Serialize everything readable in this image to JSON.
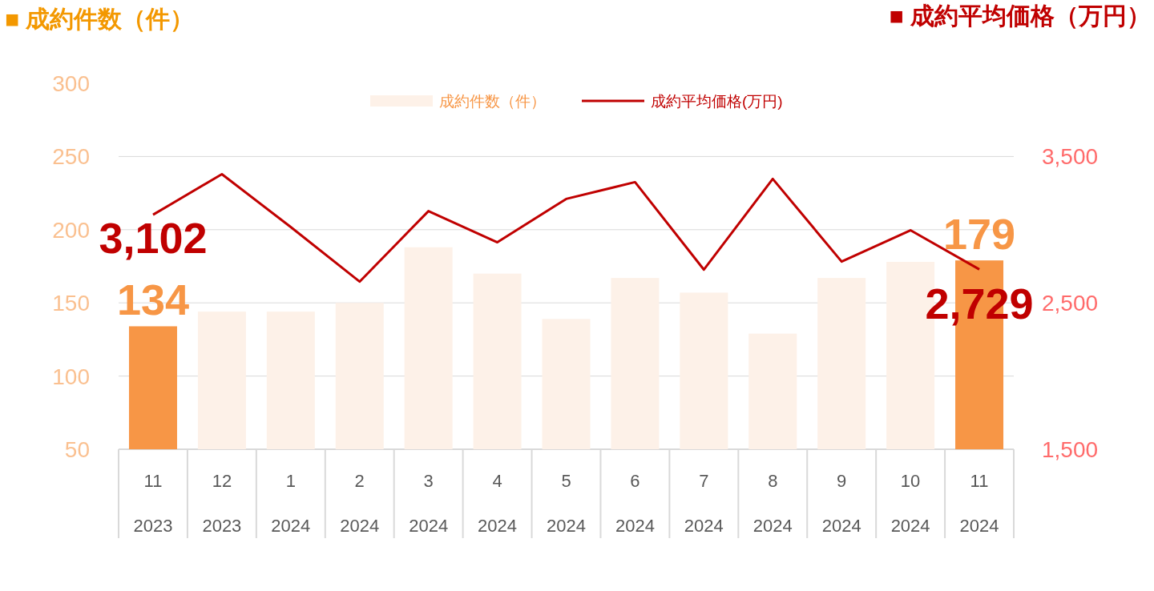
{
  "chart_data": {
    "type": "bar",
    "ylabel": "■ 成約件数（件）",
    "y2label": "■ 成約平均価格（万円）",
    "categories": [
      "11\n2023",
      "12\n2023",
      "1\n2024",
      "2\n2024",
      "3\n2024",
      "4\n2024",
      "5\n2024",
      "6\n2024",
      "7\n2024",
      "8\n2024",
      "9\n2024",
      "10\n2024",
      "11\n2024"
    ],
    "series": [
      {
        "name": "成約件数（件）",
        "color": "#fdf1e8",
        "colors": [
          "#f79646",
          "#fdf1e8",
          "#fdf1e8",
          "#fdf1e8",
          "#fdf1e8",
          "#fdf1e8",
          "#fdf1e8",
          "#fdf1e8",
          "#fdf1e8",
          "#fdf1e8",
          "#fdf1e8",
          "#fdf1e8",
          "#f79646"
        ],
        "values": [
          134,
          144,
          144,
          150,
          188,
          170,
          139,
          167,
          157,
          129,
          167,
          178,
          179
        ],
        "value_labels": [
          "134",
          null,
          null,
          null,
          null,
          null,
          null,
          null,
          null,
          null,
          null,
          null,
          "179"
        ]
      },
      {
        "name": "成約平均価格(万円)",
        "type": "line",
        "axis": "y2",
        "color": "#c00000",
        "values": [
          3102,
          3379,
          3018,
          2645,
          3127,
          2914,
          3210,
          3325,
          2727,
          3347,
          2782,
          2996,
          2729
        ],
        "value_labels": [
          "3,102",
          null,
          null,
          null,
          null,
          null,
          null,
          null,
          null,
          null,
          null,
          null,
          "2,729"
        ]
      }
    ],
    "ylim": [
      50,
      300
    ],
    "yticks": [
      50,
      100,
      150,
      200,
      250,
      300
    ],
    "y2lim": [
      1500,
      3500
    ],
    "y2ticks": [
      {
        "value": 1500,
        "label": "1,500"
      },
      {
        "value": 2500,
        "label": "2,500"
      },
      {
        "value": 3500,
        "label": "3,500"
      }
    ],
    "grid": "y",
    "legend": "top",
    "marker": "none"
  }
}
